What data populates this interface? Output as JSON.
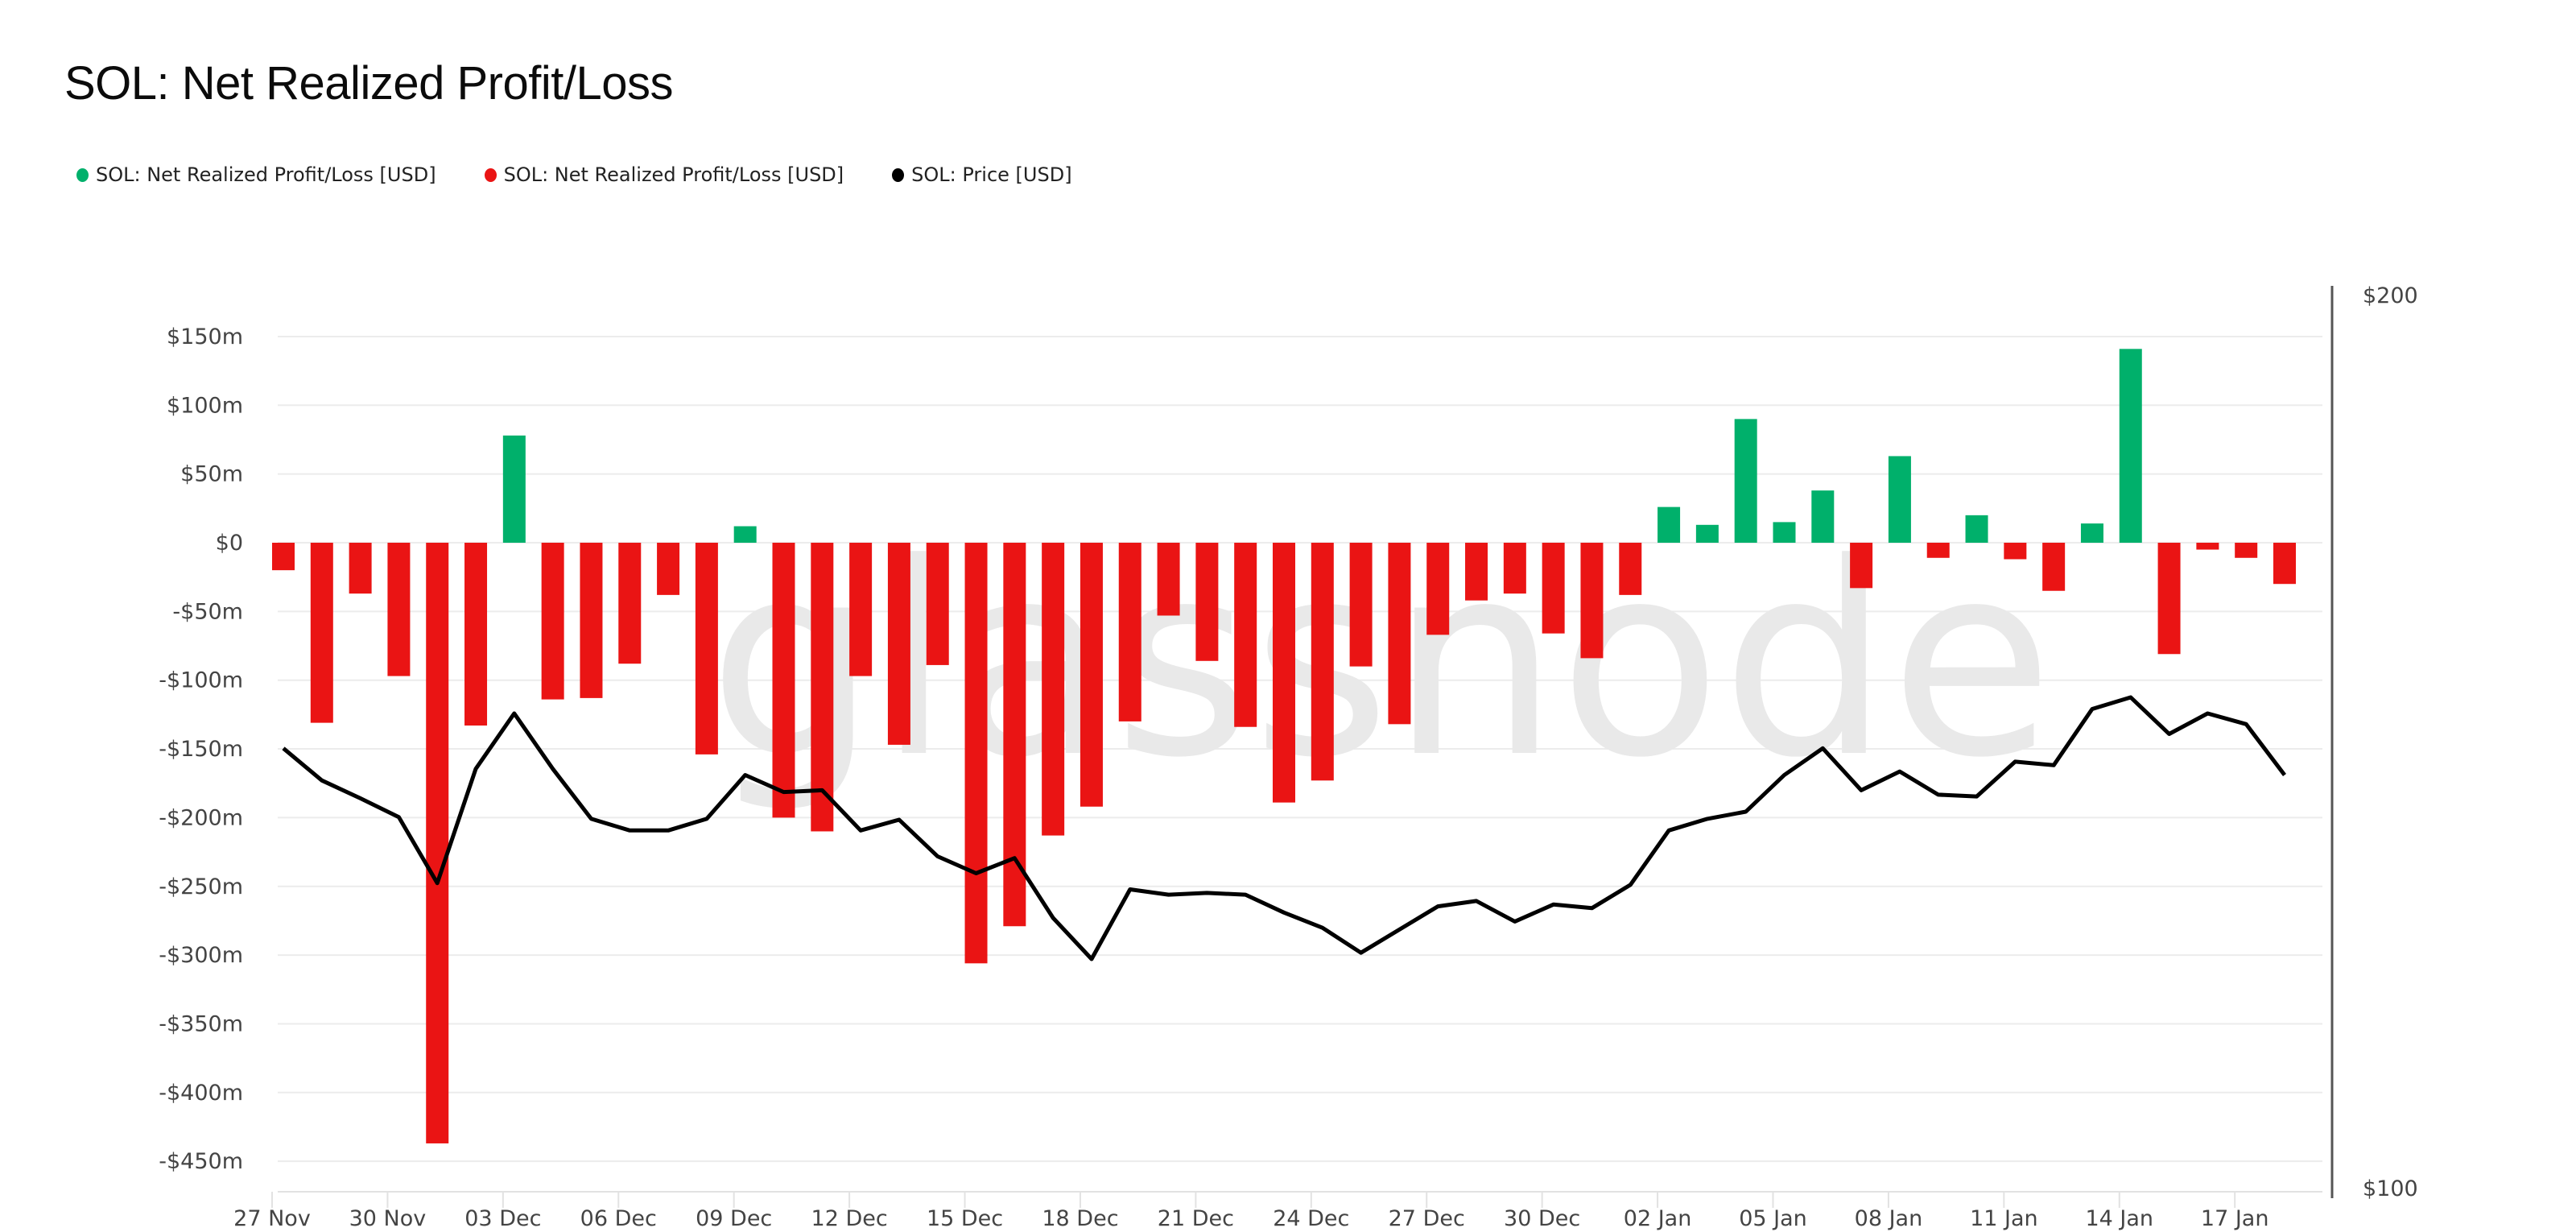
{
  "title": "SOL: Net Realized Profit/Loss",
  "legend": [
    {
      "label": "SOL: Net Realized Profit/Loss [USD]",
      "color": "#00b06b"
    },
    {
      "label": "SOL: Net Realized Profit/Loss [USD]",
      "color": "#ea1414"
    },
    {
      "label": "SOL: Price [USD]",
      "color": "#000000"
    }
  ],
  "watermark": "glassnode",
  "colors": {
    "positive": "#00b06b",
    "negative": "#ea1414",
    "price": "#000000",
    "grid": "#ececec",
    "axis": "#555555"
  },
  "chart_data": {
    "type": "bar",
    "title": "SOL: Net Realized Profit/Loss",
    "xlabel": "",
    "ylabel": "Net Realized Profit/Loss [USD]",
    "y2label": "Price [USD]",
    "ylim": [
      -470,
      175
    ],
    "y2lim": [
      100,
      200
    ],
    "y_ticks": [
      "$150m",
      "$100m",
      "$50m",
      "$0",
      "-$50m",
      "-$100m",
      "-$150m",
      "-$200m",
      "-$250m",
      "-$300m",
      "-$350m",
      "-$400m",
      "-$450m"
    ],
    "y_tick_values": [
      150,
      100,
      50,
      0,
      -50,
      -100,
      -150,
      -200,
      -250,
      -300,
      -350,
      -400,
      -450
    ],
    "y2_ticks": [
      "$200",
      "$100"
    ],
    "y2_tick_values": [
      200,
      100
    ],
    "x_tick_labels": [
      "27 Nov",
      "30 Nov",
      "03 Dec",
      "06 Dec",
      "09 Dec",
      "12 Dec",
      "15 Dec",
      "18 Dec",
      "21 Dec",
      "24 Dec",
      "27 Dec",
      "30 Dec",
      "02 Jan",
      "05 Jan",
      "08 Jan",
      "11 Jan",
      "14 Jan",
      "17 Jan"
    ],
    "x_tick_every": 3,
    "grid": true,
    "legend_position": "top-left",
    "categories": [
      "27 Nov",
      "28 Nov",
      "29 Nov",
      "30 Nov",
      "01 Dec",
      "02 Dec",
      "03 Dec",
      "04 Dec",
      "05 Dec",
      "06 Dec",
      "07 Dec",
      "08 Dec",
      "09 Dec",
      "10 Dec",
      "11 Dec",
      "12 Dec",
      "13 Dec",
      "14 Dec",
      "15 Dec",
      "16 Dec",
      "17 Dec",
      "18 Dec",
      "19 Dec",
      "20 Dec",
      "21 Dec",
      "22 Dec",
      "23 Dec",
      "24 Dec",
      "25 Dec",
      "26 Dec",
      "27 Dec",
      "28 Dec",
      "29 Dec",
      "30 Dec",
      "31 Dec",
      "01 Jan",
      "02 Jan",
      "03 Jan",
      "04 Jan",
      "05 Jan",
      "06 Jan",
      "07 Jan",
      "08 Jan",
      "09 Jan",
      "10 Jan",
      "11 Jan",
      "12 Jan",
      "13 Jan",
      "14 Jan",
      "15 Jan",
      "16 Jan",
      "17 Jan",
      "18 Jan"
    ],
    "series": [
      {
        "name": "SOL: Net Realized Profit/Loss [USD] (millions)",
        "type": "bar",
        "axis": "left",
        "values": [
          -20,
          -131,
          -37,
          -97,
          -437,
          -133,
          78,
          -114,
          -113,
          -88,
          -38,
          -154,
          12,
          -200,
          -210,
          -97,
          -147,
          -89,
          -306,
          -279,
          -213,
          -192,
          -130,
          -53,
          -86,
          -134,
          -189,
          -173,
          -90,
          -132,
          -67,
          -42,
          -37,
          -66,
          -84,
          -38,
          26,
          13,
          90,
          15,
          38,
          -33,
          63,
          -11,
          20,
          -12,
          -35,
          14,
          141,
          -81,
          -5,
          -11,
          -30
        ]
      },
      {
        "name": "SOL: Price [USD]",
        "type": "line",
        "axis": "right",
        "values": [
          149.3,
          145.7,
          143.7,
          141.6,
          134.2,
          147.0,
          153.2,
          147.0,
          141.4,
          140.1,
          140.1,
          141.4,
          146.3,
          144.4,
          144.6,
          140.1,
          141.3,
          137.2,
          135.3,
          137.0,
          130.3,
          125.7,
          133.5,
          132.9,
          133.1,
          132.9,
          130.9,
          129.2,
          126.4,
          129.0,
          131.6,
          132.2,
          129.9,
          131.8,
          131.4,
          134.0,
          140.1,
          141.4,
          142.2,
          146.3,
          149.3,
          144.6,
          146.7,
          144.1,
          143.9,
          147.8,
          147.4,
          153.7,
          155.0,
          150.9,
          153.2,
          152.0,
          146.3
        ]
      }
    ]
  }
}
